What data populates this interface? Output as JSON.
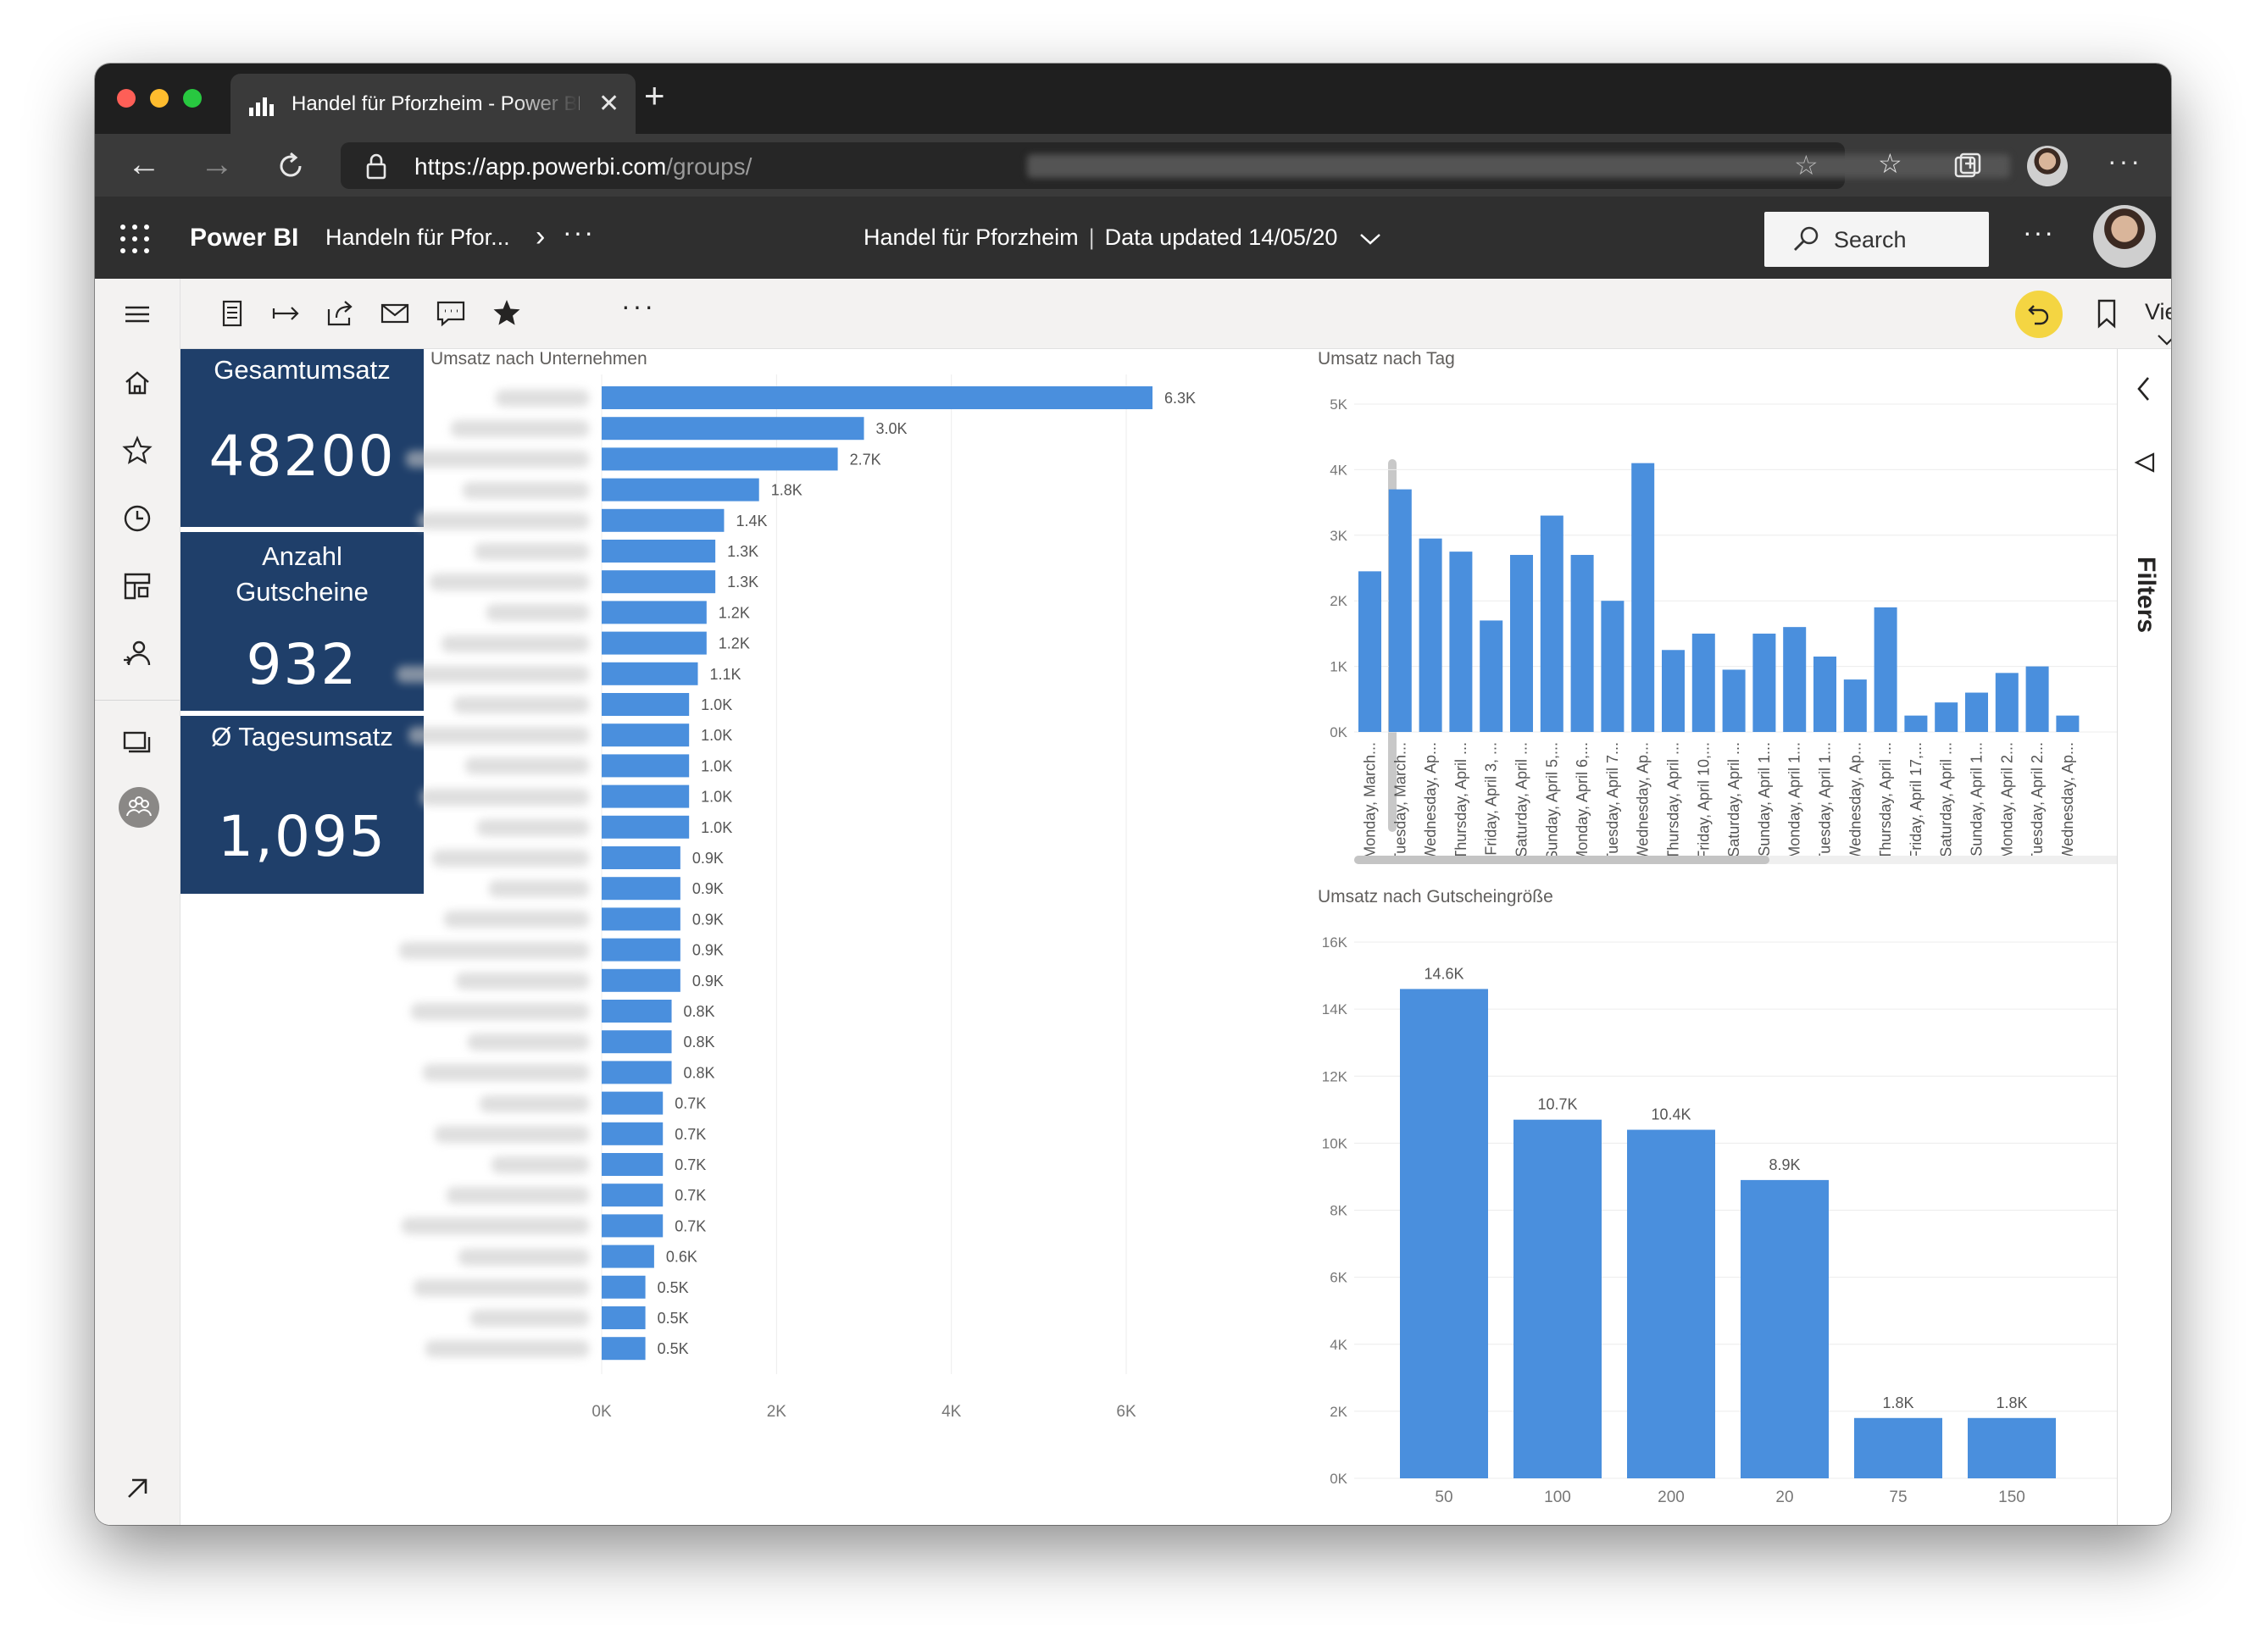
{
  "browser": {
    "tab_title": "Handel für Pforzheim - Power BI",
    "url_host": "https://app.powerbi.com",
    "url_path": "/groups/"
  },
  "header": {
    "app_name": "Power BI",
    "breadcrumb": "Handeln für Pfor...",
    "report_title": "Handel für Pforzheim",
    "data_updated": "Data updated 14/05/20",
    "search_label": "Search"
  },
  "toolbar": {
    "view_label": "View"
  },
  "filters_label": "Filters",
  "kpis": [
    {
      "title": "Gesamtumsatz",
      "value": "48200"
    },
    {
      "title": "Anzahl Gutscheine",
      "value": "932"
    },
    {
      "title": "Ø Tagesumsatz",
      "value": "1,095"
    }
  ],
  "chart_data": [
    {
      "type": "bar",
      "orientation": "horizontal",
      "title": "Umsatz nach Unternehmen",
      "xlim": [
        0,
        6300
      ],
      "xticks": [
        "0K",
        "2K",
        "4K",
        "6K"
      ],
      "values": [
        6300,
        3000,
        2700,
        1800,
        1400,
        1300,
        1300,
        1200,
        1200,
        1100,
        1000,
        1000,
        1000,
        1000,
        1000,
        900,
        900,
        900,
        900,
        900,
        800,
        800,
        800,
        700,
        700,
        700,
        700,
        700,
        600,
        500,
        500,
        500
      ],
      "data_labels": [
        "6.3K",
        "3.0K",
        "2.7K",
        "1.8K",
        "1.4K",
        "1.3K",
        "1.3K",
        "1.2K",
        "1.2K",
        "1.1K",
        "1.0K",
        "1.0K",
        "1.0K",
        "1.0K",
        "1.0K",
        "0.9K",
        "0.9K",
        "0.9K",
        "0.9K",
        "0.9K",
        "0.8K",
        "0.8K",
        "0.8K",
        "0.7K",
        "0.7K",
        "0.7K",
        "0.7K",
        "0.7K",
        "0.6K",
        "0.5K",
        "0.5K",
        "0.5K"
      ]
    },
    {
      "type": "bar",
      "title": "Umsatz nach Tag",
      "ylim": [
        0,
        5000
      ],
      "yticks": [
        "0K",
        "1K",
        "2K",
        "3K",
        "4K",
        "5K"
      ],
      "categories": [
        "Monday, March...",
        "Tuesday, March...",
        "Wednesday, Ap...",
        "Thursday, April ...",
        "Friday, April 3, ...",
        "Saturday, April ...",
        "Sunday, April 5,...",
        "Monday, April 6,...",
        "Tuesday, April 7...",
        "Wednesday, Ap...",
        "Thursday, April ...",
        "Friday, April 10,...",
        "Saturday, April ...",
        "Sunday, April 1...",
        "Monday, April 1...",
        "Tuesday, April 1...",
        "Wednesday, Ap...",
        "Thursday, April ...",
        "Friday, April 17,...",
        "Saturday, April ...",
        "Sunday, April 1...",
        "Monday, April 2...",
        "Tuesday, April 2...",
        "Wednesday, Ap..."
      ],
      "values": [
        2450,
        3700,
        2950,
        2750,
        1700,
        2700,
        3300,
        2700,
        2000,
        4100,
        1250,
        1500,
        950,
        1500,
        1600,
        1150,
        800,
        1900,
        250,
        450,
        600,
        900,
        1000,
        250
      ]
    },
    {
      "type": "bar",
      "title": "Umsatz nach Gutscheingröße",
      "ylim": [
        0,
        16000
      ],
      "yticks": [
        "0K",
        "2K",
        "4K",
        "6K",
        "8K",
        "10K",
        "12K",
        "14K",
        "16K"
      ],
      "categories": [
        "50",
        "100",
        "200",
        "20",
        "75",
        "150"
      ],
      "values": [
        14600,
        10700,
        10400,
        8900,
        1800,
        1800
      ],
      "data_labels": [
        "14.6K",
        "10.7K",
        "10.4K",
        "8.9K",
        "1.8K",
        "1.8K"
      ]
    }
  ],
  "colors": {
    "bar": "#4a8fdd",
    "kpi_bg": "#1f3f6a",
    "header_bg": "#2f2f2f",
    "undo_accent": "#f4d542"
  }
}
